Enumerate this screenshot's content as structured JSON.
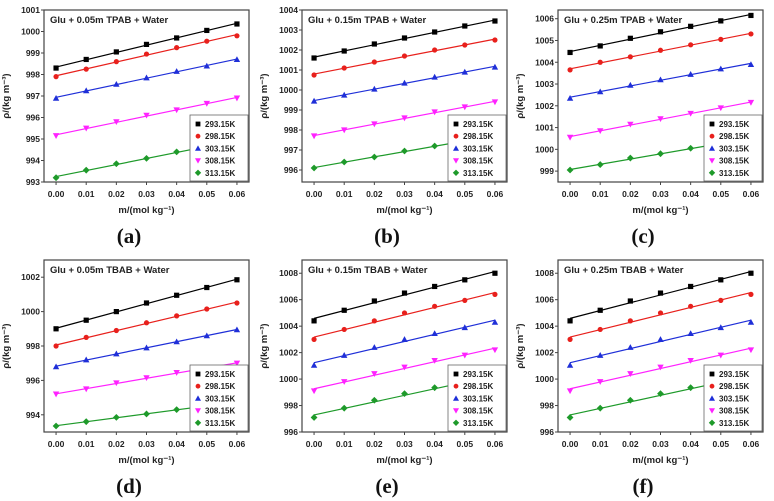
{
  "chart_data": [
    {
      "type": "scatter",
      "panel_label": "(a)",
      "title": "Glu + 0.05m TPAB + Water",
      "xlabel": "m/(mol kg⁻¹)",
      "ylabel": "ρ/(kg m⁻³)",
      "xlim": [
        -0.004,
        0.064
      ],
      "ylim": [
        993,
        1001
      ],
      "xticks": [
        "0.00",
        "0.01",
        "0.02",
        "0.03",
        "0.04",
        "0.05",
        "0.06"
      ],
      "yticks": [
        "993",
        "994",
        "995",
        "996",
        "997",
        "998",
        "999",
        "1000",
        "1001"
      ],
      "grid": false,
      "legend": "bottom-right",
      "fit": "linear",
      "x": [
        0.0,
        0.01,
        0.02,
        0.03,
        0.04,
        0.05,
        0.06
      ],
      "series": [
        {
          "name": "293.15K",
          "values": [
            998.3,
            998.7,
            999.05,
            999.4,
            999.7,
            1000.05,
            1000.35
          ]
        },
        {
          "name": "298.15K",
          "values": [
            997.9,
            998.25,
            998.6,
            998.95,
            999.25,
            999.55,
            999.8
          ]
        },
        {
          "name": "303.15K",
          "values": [
            996.9,
            997.25,
            997.55,
            997.85,
            998.15,
            998.4,
            998.7
          ]
        },
        {
          "name": "308.15K",
          "values": [
            995.15,
            995.5,
            995.8,
            996.1,
            996.35,
            996.65,
            996.9
          ]
        },
        {
          "name": "313.15K",
          "values": [
            993.2,
            993.55,
            993.85,
            994.1,
            994.4,
            994.65,
            994.9
          ]
        }
      ]
    },
    {
      "type": "scatter",
      "panel_label": "(b)",
      "title": "Glu + 0.15m TPAB + Water",
      "xlabel": "m/(mol kg⁻¹)",
      "ylabel": "ρ/(kg m⁻³)",
      "xlim": [
        -0.004,
        0.064
      ],
      "ylim": [
        995.4,
        1004
      ],
      "xticks": [
        "0.00",
        "0.01",
        "0.02",
        "0.03",
        "0.04",
        "0.05",
        "0.06"
      ],
      "yticks": [
        "996",
        "997",
        "998",
        "999",
        "1000",
        "1001",
        "1002",
        "1003",
        "1004"
      ],
      "grid": false,
      "legend": "bottom-right",
      "fit": "linear",
      "x": [
        0.0,
        0.01,
        0.02,
        0.03,
        0.04,
        0.05,
        0.06
      ],
      "series": [
        {
          "name": "293.15K",
          "values": [
            1001.6,
            1001.95,
            1002.3,
            1002.6,
            1002.9,
            1003.2,
            1003.45
          ]
        },
        {
          "name": "298.15K",
          "values": [
            1000.75,
            1001.1,
            1001.4,
            1001.7,
            1002.0,
            1002.25,
            1002.5
          ]
        },
        {
          "name": "303.15K",
          "values": [
            999.45,
            999.75,
            1000.05,
            1000.35,
            1000.65,
            1000.9,
            1001.15
          ]
        },
        {
          "name": "308.15K",
          "values": [
            997.7,
            998.0,
            998.3,
            998.6,
            998.9,
            999.15,
            999.4
          ]
        },
        {
          "name": "313.15K",
          "values": [
            996.1,
            996.4,
            996.65,
            996.95,
            997.2,
            997.45,
            997.7
          ]
        }
      ]
    },
    {
      "type": "scatter",
      "panel_label": "(c)",
      "title": "Glu + 0.25m TPAB + Water",
      "xlabel": "m/(mol kg⁻¹)",
      "ylabel": "ρ/(kg m⁻³)",
      "xlim": [
        -0.004,
        0.064
      ],
      "ylim": [
        998.5,
        1006.4
      ],
      "xticks": [
        "0.00",
        "0.01",
        "0.02",
        "0.03",
        "0.04",
        "0.05",
        "0.06"
      ],
      "yticks": [
        "999",
        "1000",
        "1001",
        "1002",
        "1003",
        "1004",
        "1005",
        "1006"
      ],
      "grid": false,
      "legend": "bottom-right",
      "fit": "linear",
      "x": [
        0.0,
        0.01,
        0.02,
        0.03,
        0.04,
        0.05,
        0.06
      ],
      "series": [
        {
          "name": "293.15K",
          "values": [
            1004.45,
            1004.75,
            1005.1,
            1005.4,
            1005.65,
            1005.9,
            1006.15
          ]
        },
        {
          "name": "298.15K",
          "values": [
            1003.65,
            1004.0,
            1004.25,
            1004.55,
            1004.8,
            1005.05,
            1005.3
          ]
        },
        {
          "name": "303.15K",
          "values": [
            1002.35,
            1002.65,
            1002.95,
            1003.2,
            1003.45,
            1003.7,
            1003.9
          ]
        },
        {
          "name": "308.15K",
          "values": [
            1000.55,
            1000.85,
            1001.15,
            1001.4,
            1001.65,
            1001.9,
            1002.15
          ]
        },
        {
          "name": "313.15K",
          "values": [
            999.05,
            999.3,
            999.6,
            999.8,
            1000.05,
            1000.25,
            1000.5
          ]
        }
      ]
    },
    {
      "type": "scatter",
      "panel_label": "(d)",
      "title": "Glu + 0.05m TBAB + Water",
      "xlabel": "m/(mol kg⁻¹)",
      "ylabel": "ρ/(kg m⁻³)",
      "xlim": [
        -0.004,
        0.064
      ],
      "ylim": [
        993,
        1003
      ],
      "xticks": [
        "0.00",
        "0.01",
        "0.02",
        "0.03",
        "0.04",
        "0.05",
        "0.06"
      ],
      "yticks": [
        "994",
        "996",
        "998",
        "1000",
        "1002"
      ],
      "grid": false,
      "legend": "bottom-right",
      "fit": "linear",
      "x": [
        0.0,
        0.01,
        0.02,
        0.03,
        0.04,
        0.05,
        0.06
      ],
      "series": [
        {
          "name": "293.15K",
          "values": [
            999.0,
            999.5,
            1000.0,
            1000.5,
            1000.95,
            1001.4,
            1001.85
          ]
        },
        {
          "name": "298.15K",
          "values": [
            998.0,
            998.5,
            998.9,
            999.35,
            999.75,
            1000.15,
            1000.5
          ]
        },
        {
          "name": "303.15K",
          "values": [
            996.8,
            997.2,
            997.55,
            997.9,
            998.25,
            998.6,
            998.95
          ]
        },
        {
          "name": "308.15K",
          "values": [
            995.2,
            995.5,
            995.85,
            996.15,
            996.45,
            996.7,
            997.0
          ]
        },
        {
          "name": "313.15K",
          "values": [
            993.35,
            993.6,
            993.85,
            994.05,
            994.3,
            994.5,
            994.75
          ]
        }
      ]
    },
    {
      "type": "scatter",
      "panel_label": "(e)",
      "title": "Glu + 0.15m TBAB + Water",
      "xlabel": "m/(mol kg⁻¹)",
      "ylabel": "ρ/(kg m⁻³)",
      "xlim": [
        -0.004,
        0.064
      ],
      "ylim": [
        996,
        1009
      ],
      "xticks": [
        "0.00",
        "0.01",
        "0.02",
        "0.03",
        "0.04",
        "0.05",
        "0.06"
      ],
      "yticks": [
        "996",
        "998",
        "1000",
        "1002",
        "1004",
        "1006",
        "1008"
      ],
      "grid": false,
      "legend": "bottom-right",
      "fit": "linear",
      "x": [
        0.0,
        0.01,
        0.02,
        0.03,
        0.04,
        0.05,
        0.06
      ],
      "series": [
        {
          "name": "293.15K",
          "values": [
            1004.4,
            1005.2,
            1005.9,
            1006.5,
            1007.0,
            1007.5,
            1008.0
          ]
        },
        {
          "name": "298.15K",
          "values": [
            1003.0,
            1003.75,
            1004.4,
            1005.0,
            1005.5,
            1005.95,
            1006.4
          ]
        },
        {
          "name": "303.15K",
          "values": [
            1001.05,
            1001.8,
            1002.4,
            1003.0,
            1003.45,
            1003.9,
            1004.3
          ]
        },
        {
          "name": "308.15K",
          "values": [
            999.1,
            999.8,
            1000.4,
            1000.9,
            1001.4,
            1001.8,
            1002.2
          ]
        },
        {
          "name": "313.15K",
          "values": [
            997.1,
            997.8,
            998.4,
            998.9,
            999.35,
            999.75,
            1000.1
          ]
        }
      ]
    },
    {
      "type": "scatter",
      "panel_label": "(f)",
      "title": "Glu + 0.25m TBAB + Water",
      "xlabel": "m/(mol kg⁻¹)",
      "ylabel": "ρ/(kg m⁻³)",
      "xlim": [
        -0.004,
        0.064
      ],
      "ylim": [
        996,
        1009
      ],
      "xticks": [
        "0.00",
        "0.01",
        "0.02",
        "0.03",
        "0.04",
        "0.05",
        "0.06"
      ],
      "yticks": [
        "996",
        "998",
        "1000",
        "1002",
        "1004",
        "1006",
        "1008"
      ],
      "grid": false,
      "legend": "bottom-right",
      "fit": "linear",
      "x": [
        0.0,
        0.01,
        0.02,
        0.03,
        0.04,
        0.05,
        0.06
      ],
      "series": [
        {
          "name": "293.15K",
          "values": [
            1004.4,
            1005.2,
            1005.9,
            1006.5,
            1007.0,
            1007.5,
            1008.0
          ]
        },
        {
          "name": "298.15K",
          "values": [
            1003.0,
            1003.75,
            1004.4,
            1005.0,
            1005.5,
            1005.95,
            1006.4
          ]
        },
        {
          "name": "303.15K",
          "values": [
            1001.05,
            1001.8,
            1002.4,
            1003.0,
            1003.45,
            1003.9,
            1004.3
          ]
        },
        {
          "name": "308.15K",
          "values": [
            999.1,
            999.8,
            1000.4,
            1000.9,
            1001.4,
            1001.8,
            1002.2
          ]
        },
        {
          "name": "313.15K",
          "values": [
            997.1,
            997.8,
            998.4,
            998.9,
            999.35,
            999.75,
            1000.1
          ]
        }
      ]
    }
  ],
  "series_style": {
    "colors": [
      "#000000",
      "#e8201c",
      "#1f2fd8",
      "#ff22ff",
      "#1e9a2a"
    ],
    "markers": [
      "square",
      "circle",
      "triangle-up",
      "triangle-down",
      "diamond"
    ]
  }
}
